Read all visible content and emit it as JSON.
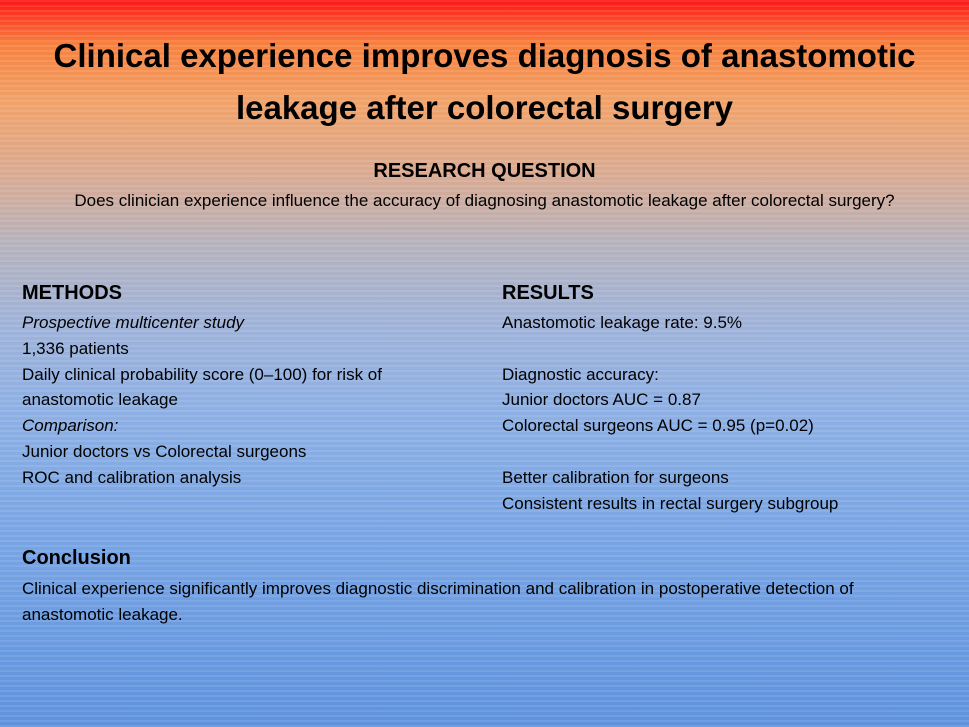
{
  "title": "Clinical experience improves diagnosis of anastomotic leakage after colorectal surgery",
  "research_question": {
    "heading": "RESEARCH QUESTION",
    "text": "Does clinician experience influence the accuracy of diagnosing anastomotic leakage after colorectal surgery?"
  },
  "methods": {
    "heading": "METHODS",
    "items": [
      {
        "text": "Prospective multicenter study",
        "italic": true
      },
      {
        "text": "1,336 patients",
        "italic": false
      },
      {
        "text": "Daily clinical probability score (0–100) for risk of anastomotic leakage",
        "italic": false
      },
      {
        "text": "Comparison:",
        "italic": true
      },
      {
        "text": "Junior doctors vs Colorectal surgeons",
        "italic": false
      },
      {
        "text": "ROC and calibration analysis",
        "italic": false
      }
    ]
  },
  "results": {
    "heading": "RESULTS",
    "groups": [
      [
        "Anastomotic leakage rate: 9.5%"
      ],
      [
        "Diagnostic accuracy:",
        "Junior doctors AUC = 0.87",
        "Colorectal surgeons AUC = 0.95 (p=0.02)"
      ],
      [
        "Better calibration for surgeons",
        "Consistent results in rectal surgery subgroup"
      ]
    ]
  },
  "conclusion": {
    "heading": "Conclusion",
    "text": "Clinical experience significantly improves diagnostic discrimination and calibration in postoperative detection of anastomotic leakage."
  }
}
